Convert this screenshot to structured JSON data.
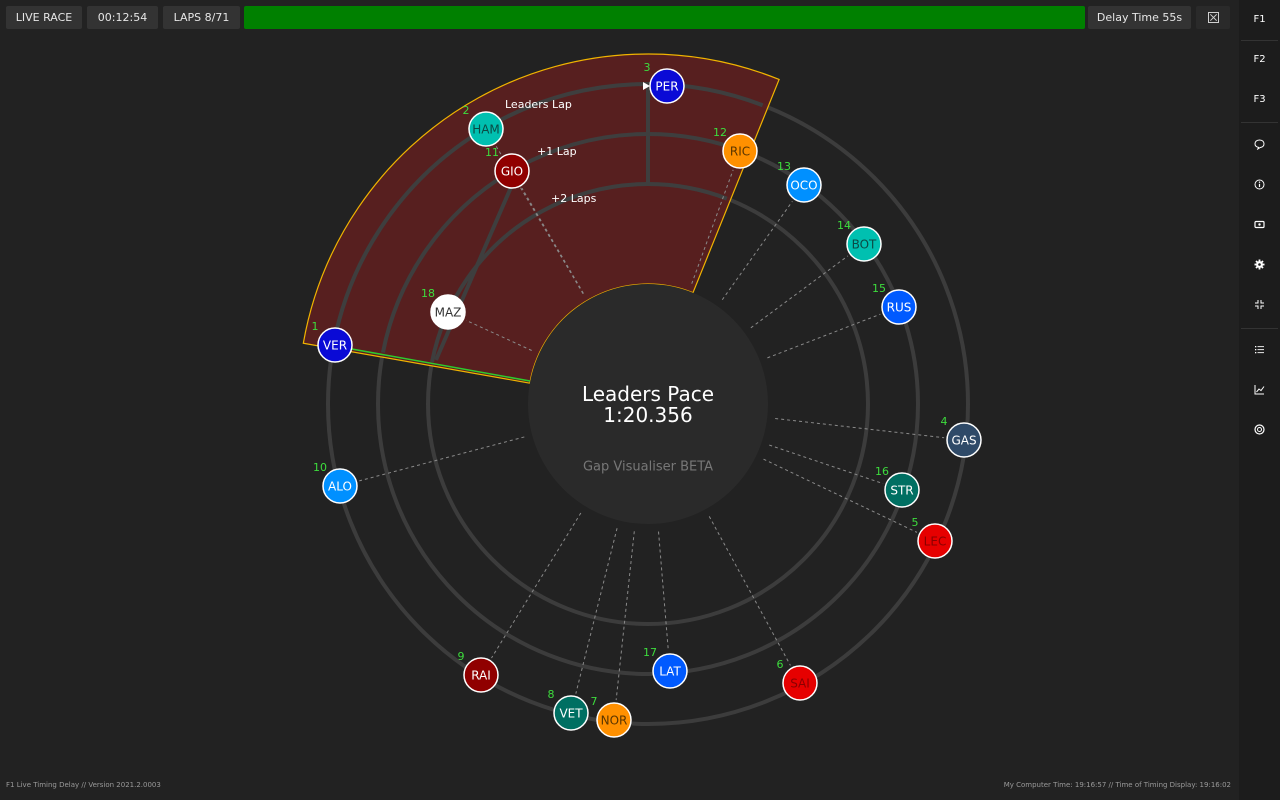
{
  "topbar": {
    "mode": "LIVE RACE",
    "session_time": "00:12:54",
    "laps": "LAPS 8/71",
    "progress": 1.0,
    "delay": "Delay Time 55s"
  },
  "sidebar": {
    "items": [
      {
        "name": "sidebar-item-f1",
        "label": "F1"
      },
      {
        "name": "sidebar-item-f2",
        "label": "F2"
      },
      {
        "name": "sidebar-item-f3",
        "label": "F3"
      }
    ],
    "icons": [
      "chat-icon",
      "info-icon",
      "tv-icon",
      "gear-icon",
      "compress-icon",
      "list-icon",
      "chart-icon",
      "tyre-icon"
    ]
  },
  "center": {
    "title": "Leaders Pace",
    "time": "1:20.356",
    "subtitle": "Gap Visualiser BETA"
  },
  "lap_labels": {
    "leaders": "Leaders Lap",
    "plus1": "+1 Lap",
    "plus2": "+2 Laps"
  },
  "drivers": [
    {
      "code": "VER",
      "pos": "1",
      "color": "#0a0ad6",
      "text": "#ffffff"
    },
    {
      "code": "HAM",
      "pos": "2",
      "color": "#00c0b0",
      "text": "#0b4a44"
    },
    {
      "code": "PER",
      "pos": "3",
      "color": "#0a0ad6",
      "text": "#ffffff"
    },
    {
      "code": "GAS",
      "pos": "4",
      "color": "#2f4a68",
      "text": "#ffffff"
    },
    {
      "code": "LEC",
      "pos": "5",
      "color": "#e60000",
      "text": "#8a0000"
    },
    {
      "code": "SAI",
      "pos": "6",
      "color": "#e60000",
      "text": "#8a0000"
    },
    {
      "code": "NOR",
      "pos": "7",
      "color": "#ff9000",
      "text": "#5a3500"
    },
    {
      "code": "VET",
      "pos": "8",
      "color": "#006f62",
      "text": "#ffffff"
    },
    {
      "code": "RAI",
      "pos": "9",
      "color": "#900000",
      "text": "#ffffff"
    },
    {
      "code": "ALO",
      "pos": "10",
      "color": "#0090ff",
      "text": "#ffffff"
    },
    {
      "code": "GIO",
      "pos": "11",
      "color": "#900000",
      "text": "#ffffff"
    },
    {
      "code": "RIC",
      "pos": "12",
      "color": "#ff9000",
      "text": "#5a3500"
    },
    {
      "code": "OCO",
      "pos": "13",
      "color": "#0090ff",
      "text": "#ffffff"
    },
    {
      "code": "BOT",
      "pos": "14",
      "color": "#00c0b0",
      "text": "#0b4a44"
    },
    {
      "code": "RUS",
      "pos": "15",
      "color": "#005aff",
      "text": "#ffffff"
    },
    {
      "code": "STR",
      "pos": "16",
      "color": "#006f62",
      "text": "#ffffff"
    },
    {
      "code": "LAT",
      "pos": "17",
      "color": "#005aff",
      "text": "#ffffff"
    },
    {
      "code": "MAZ",
      "pos": "18",
      "color": "#ffffff",
      "text": "#333333"
    }
  ],
  "footer": {
    "left": "F1 Live Timing Delay // Version 2021.2.0003",
    "right": "My Computer Time: 19:16:57 // Time of Timing Display: 19:16:02"
  },
  "colors": {
    "sector_fill": "#5c1f1f",
    "sector_edge": "#f0b400",
    "leader_line": "#2ecc2e",
    "ring": "#3c3c3c",
    "progress": "#008000"
  }
}
